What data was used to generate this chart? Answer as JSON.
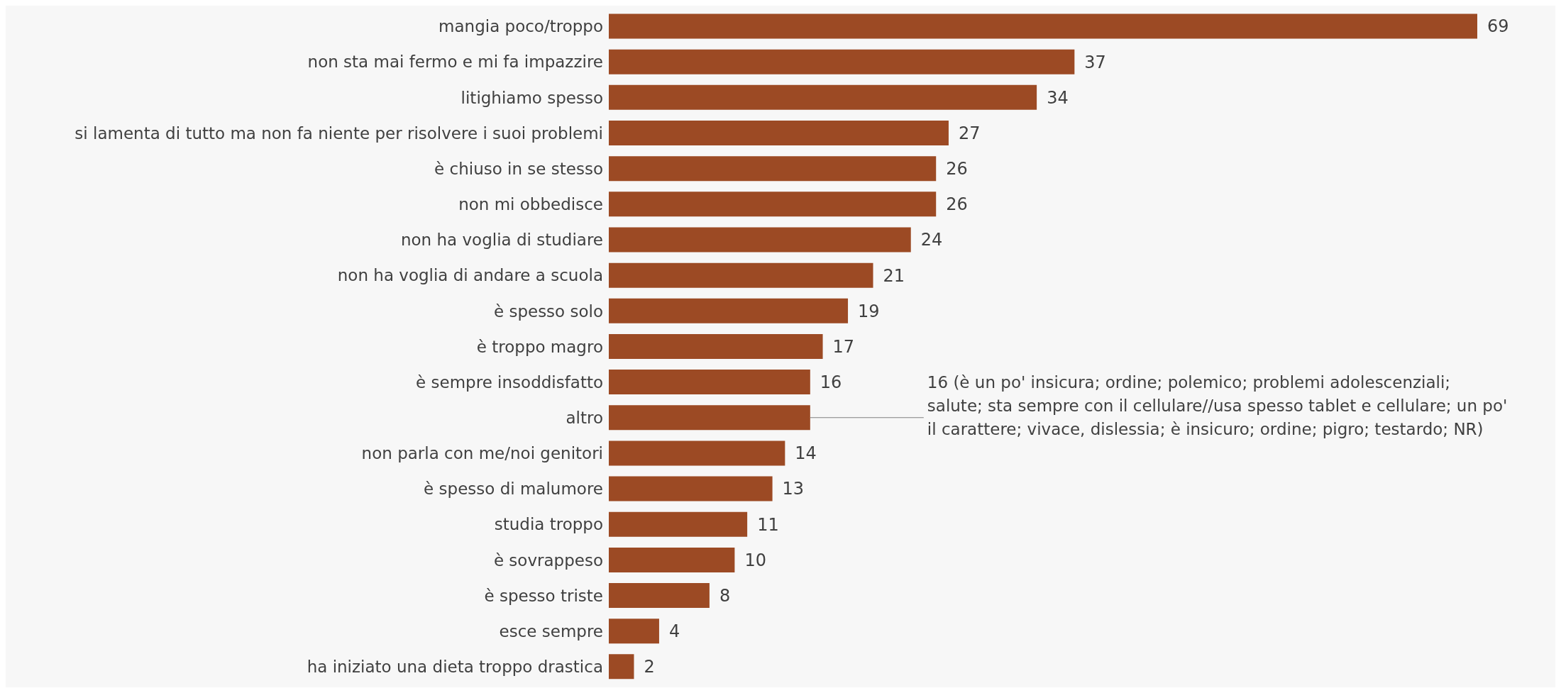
{
  "chart_data": {
    "type": "bar",
    "orientation": "horizontal",
    "categories": [
      "mangia poco/troppo",
      "non sta mai fermo e mi fa impazzire",
      "litighiamo spesso",
      "si lamenta di tutto ma non fa niente per risolvere i suoi problemi",
      "è chiuso in se stesso",
      "non mi obbedisce",
      "non ha voglia di studiare",
      "non ha voglia di andare a scuola",
      "è spesso solo",
      "è troppo magro",
      "è sempre insoddisfatto",
      "altro",
      "non parla con me/noi genitori",
      "è spesso di malumore",
      "studia troppo",
      "è sovrappeso",
      "è spesso triste",
      "esce sempre",
      "ha iniziato una dieta troppo drastica"
    ],
    "values": [
      69,
      37,
      34,
      27,
      26,
      26,
      24,
      21,
      19,
      17,
      16,
      16,
      14,
      13,
      11,
      10,
      8,
      4,
      2
    ],
    "value_labels": [
      "69",
      "37",
      "34",
      "27",
      "26",
      "26",
      "24",
      "21",
      "19",
      "17",
      "16",
      null,
      "14",
      "13",
      "11",
      "10",
      "8",
      "4",
      "2"
    ],
    "color": "#9c4a24",
    "annotations": [
      {
        "text": "16 (è un po' insicura; ordine; polemico; problemi adolescenziali; salute; sta sempre con il cellulare//usa spesso tablet e cellulare; un po' il carattere; vivace, dislessia; è insicuro; ordine; pigro; testardo; NR)",
        "x": 16,
        "y": "altro"
      }
    ]
  }
}
